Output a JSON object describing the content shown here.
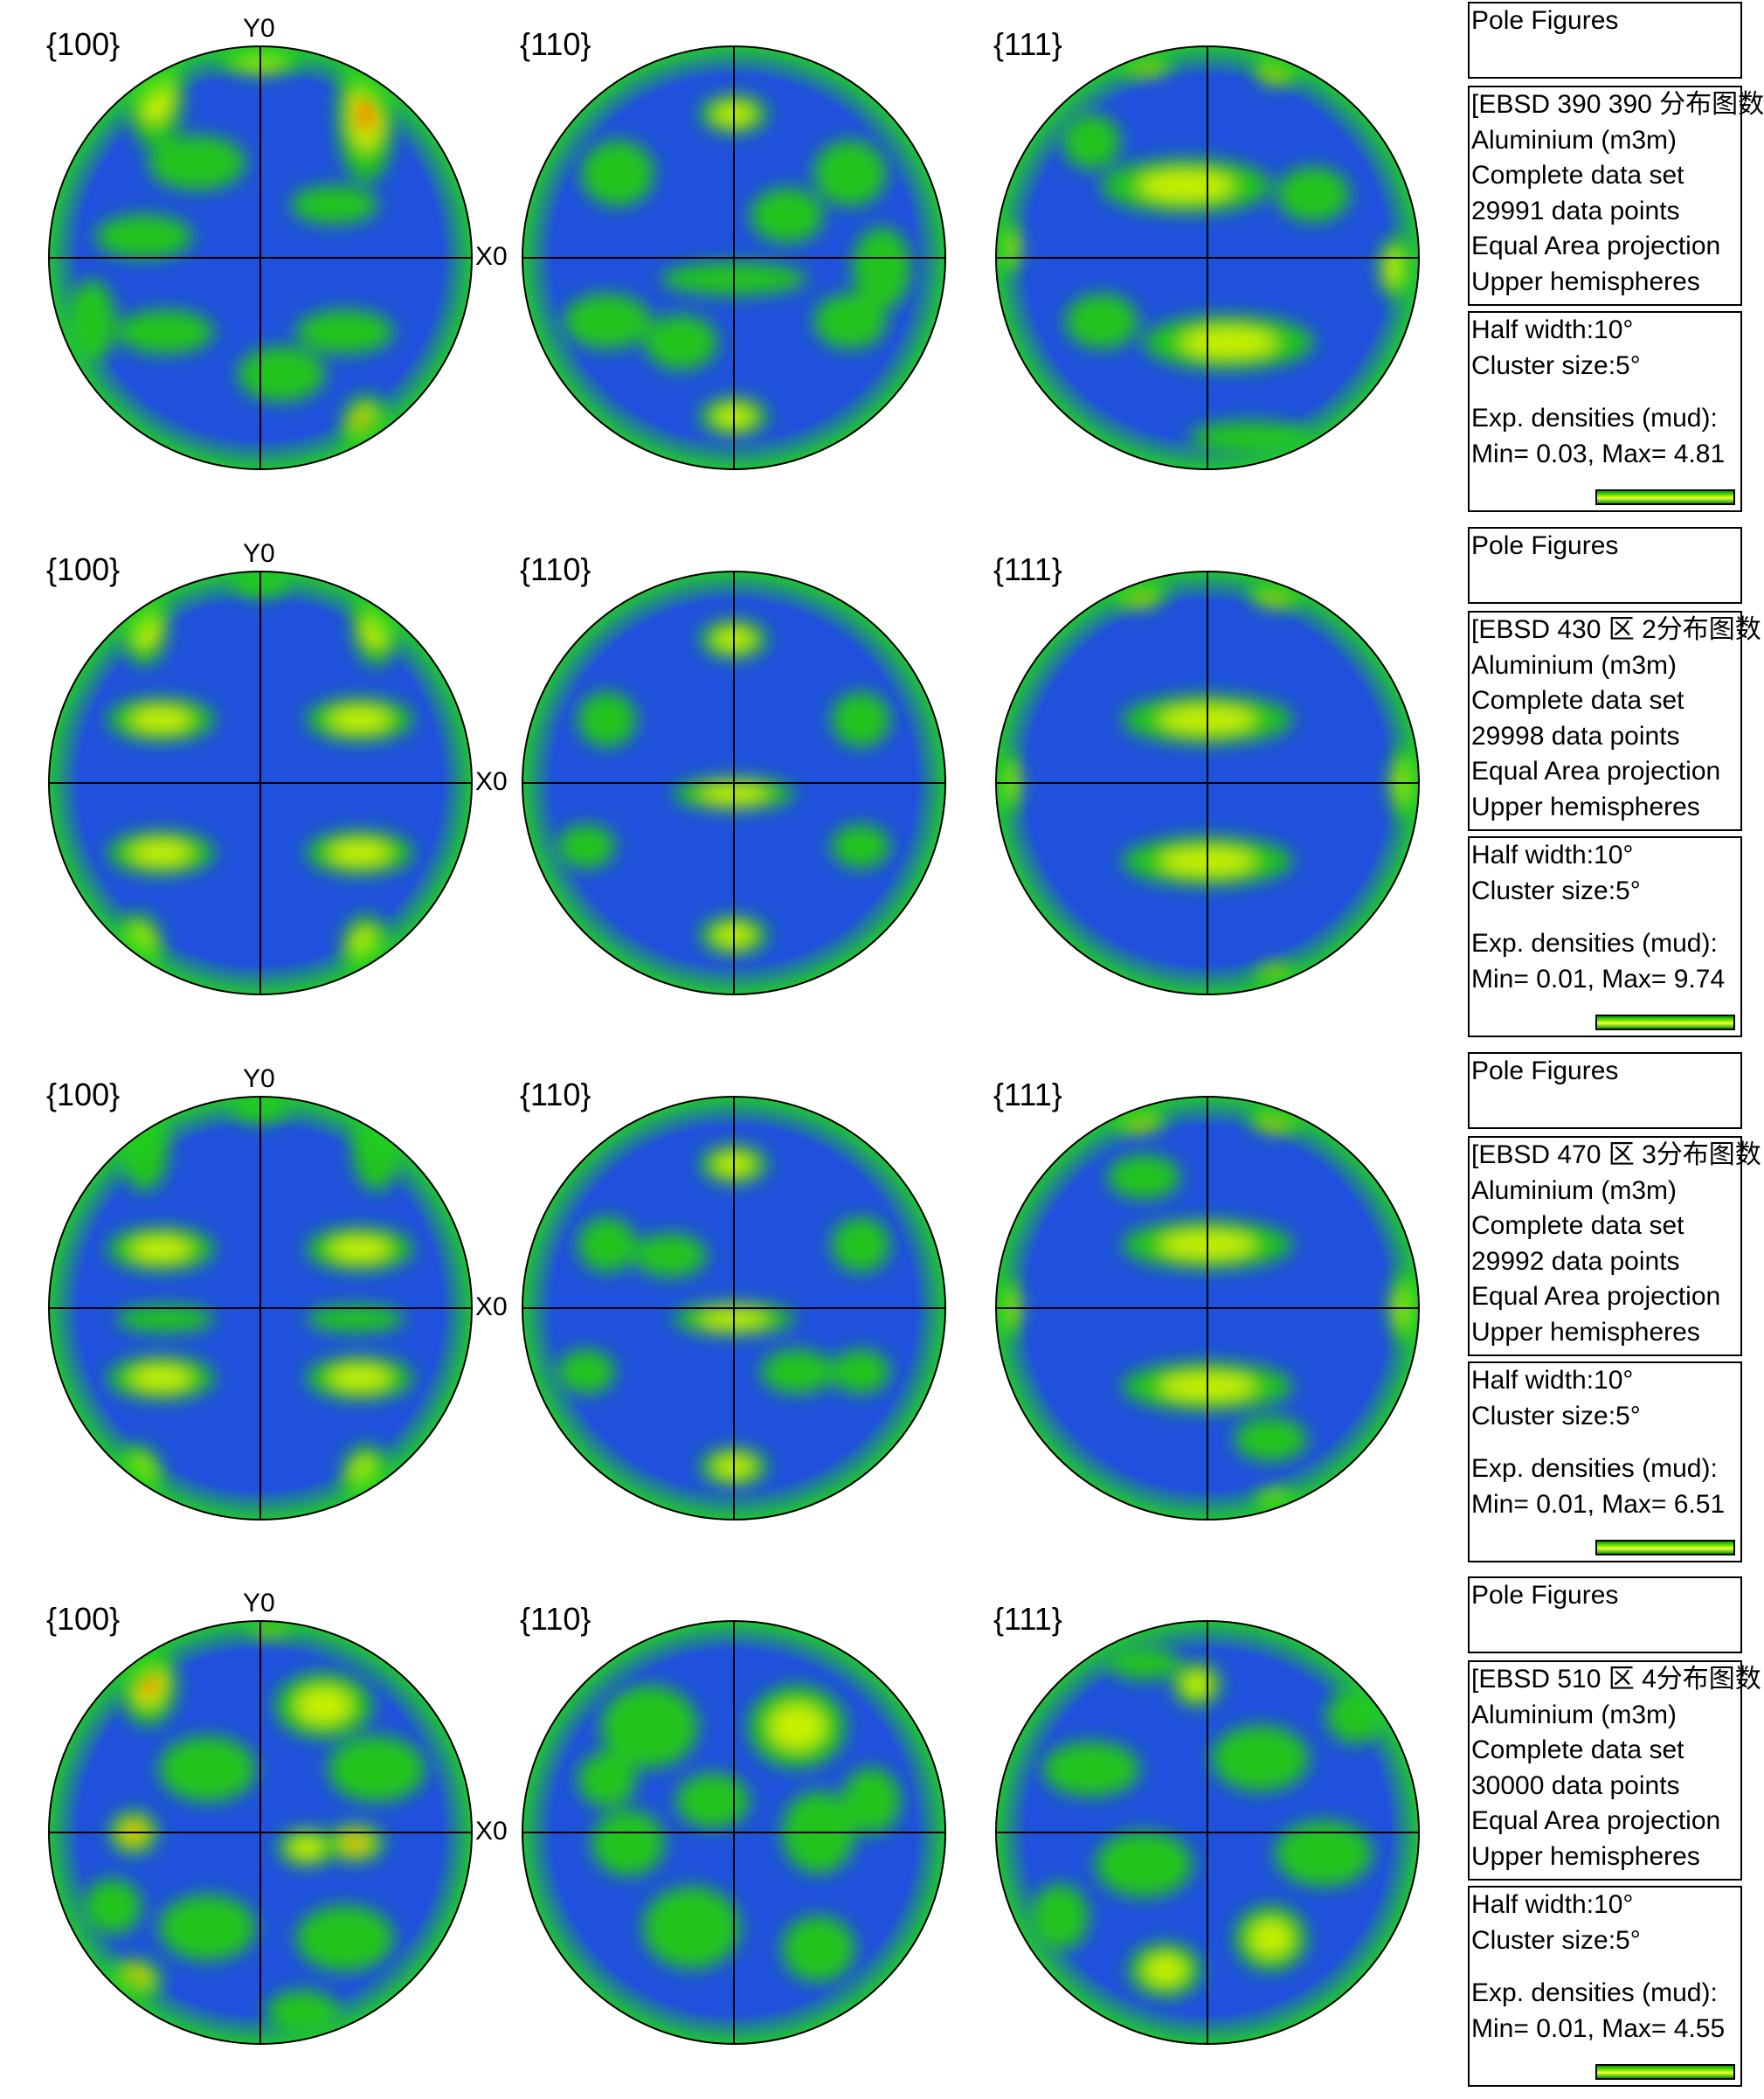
{
  "chart_data": [
    {
      "type": "heatmap",
      "pole_figures": [
        "{100}",
        "{110}",
        "{111}"
      ],
      "axis_labels": {
        "y": "Y0",
        "x": "X0"
      },
      "info": {
        "title": "Pole Figures",
        "dataset": "[EBSD 390 390 分布图数",
        "material": "Aluminium (m3m)",
        "data_set": "Complete data set",
        "points": "29991 data points",
        "projection": "Equal Area projection",
        "hemisphere": "Upper hemispheres",
        "half_width": "Half width:10°",
        "cluster_size": "Cluster size:5°",
        "densities_label": "Exp. densities (mud):",
        "min_max": "Min= 0.03, Max= 4.81"
      },
      "min_density": 0.03,
      "max_density": 4.81
    },
    {
      "type": "heatmap",
      "pole_figures": [
        "{100}",
        "{110}",
        "{111}"
      ],
      "axis_labels": {
        "y": "Y0",
        "x": "X0"
      },
      "info": {
        "title": "Pole Figures",
        "dataset": "[EBSD 430 区 2分布图数",
        "material": "Aluminium (m3m)",
        "data_set": "Complete data set",
        "points": "29998 data points",
        "projection": "Equal Area projection",
        "hemisphere": "Upper hemispheres",
        "half_width": "Half width:10°",
        "cluster_size": "Cluster size:5°",
        "densities_label": "Exp. densities (mud):",
        "min_max": "Min= 0.01, Max= 9.74"
      },
      "min_density": 0.01,
      "max_density": 9.74
    },
    {
      "type": "heatmap",
      "pole_figures": [
        "{100}",
        "{110}",
        "{111}"
      ],
      "axis_labels": {
        "y": "Y0",
        "x": "X0"
      },
      "info": {
        "title": "Pole Figures",
        "dataset": "[EBSD 470 区 3分布图数",
        "material": "Aluminium (m3m)",
        "data_set": "Complete data set",
        "points": "29992 data points",
        "projection": "Equal Area projection",
        "hemisphere": "Upper hemispheres",
        "half_width": "Half width:10°",
        "cluster_size": "Cluster size:5°",
        "densities_label": "Exp. densities (mud):",
        "min_max": "Min= 0.01, Max= 6.51"
      },
      "min_density": 0.01,
      "max_density": 6.51
    },
    {
      "type": "heatmap",
      "pole_figures": [
        "{100}",
        "{110}",
        "{111}"
      ],
      "axis_labels": {
        "y": "Y0",
        "x": "X0"
      },
      "info": {
        "title": "Pole Figures",
        "dataset": "[EBSD 510 区 4分布图数",
        "material": "Aluminium (m3m)",
        "data_set": "Complete data set",
        "points": "30000 data points",
        "projection": "Equal Area projection",
        "hemisphere": "Upper hemispheres",
        "half_width": "Half width:10°",
        "cluster_size": "Cluster size:5°",
        "densities_label": "Exp. densities (mud):",
        "min_max": "Min= 0.01, Max= 4.55"
      },
      "min_density": 0.01,
      "max_density": 4.55
    }
  ],
  "colors": {
    "background": "#1f3fe0",
    "low": "#2060d8",
    "mid": "#22c41e",
    "high": "#c8f000",
    "peak": "#ff2a00",
    "rim": "#20d020",
    "line": "#000000"
  }
}
